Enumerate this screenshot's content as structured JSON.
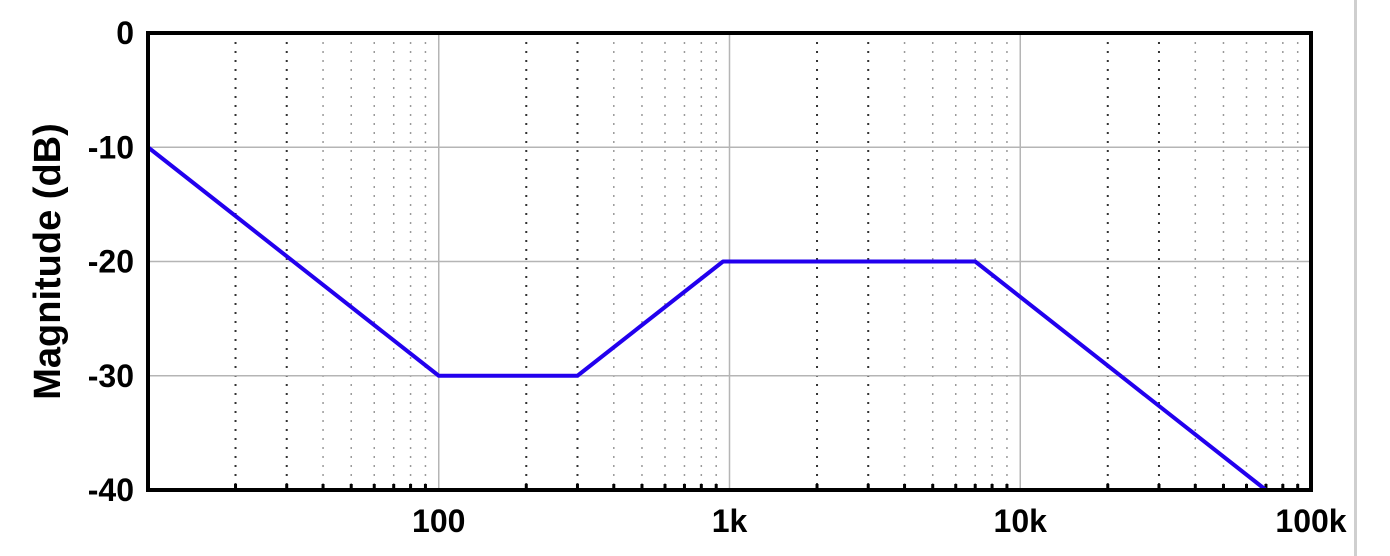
{
  "chart_data": {
    "type": "line",
    "title": "",
    "xlabel": "",
    "ylabel": "Magnitude (dB)",
    "x_scale": "log",
    "xlim": [
      10,
      100000
    ],
    "ylim": [
      -40,
      0
    ],
    "grid": true,
    "x_ticks": [
      {
        "value": 100,
        "label": "100"
      },
      {
        "value": 1000,
        "label": "1k"
      },
      {
        "value": 10000,
        "label": "10k"
      },
      {
        "value": 100000,
        "label": "100k"
      }
    ],
    "y_ticks": [
      {
        "value": 0,
        "label": "0"
      },
      {
        "value": -10,
        "label": "-10"
      },
      {
        "value": -20,
        "label": "-20"
      },
      {
        "value": -30,
        "label": "-30"
      },
      {
        "value": -40,
        "label": "-40"
      }
    ],
    "series": [
      {
        "color": "#2200ee",
        "points": [
          {
            "x": 10,
            "y": -10
          },
          {
            "x": 100,
            "y": -30
          },
          {
            "x": 300,
            "y": -30
          },
          {
            "x": 950,
            "y": -20
          },
          {
            "x": 7000,
            "y": -20
          },
          {
            "x": 70000,
            "y": -40
          }
        ]
      }
    ]
  }
}
